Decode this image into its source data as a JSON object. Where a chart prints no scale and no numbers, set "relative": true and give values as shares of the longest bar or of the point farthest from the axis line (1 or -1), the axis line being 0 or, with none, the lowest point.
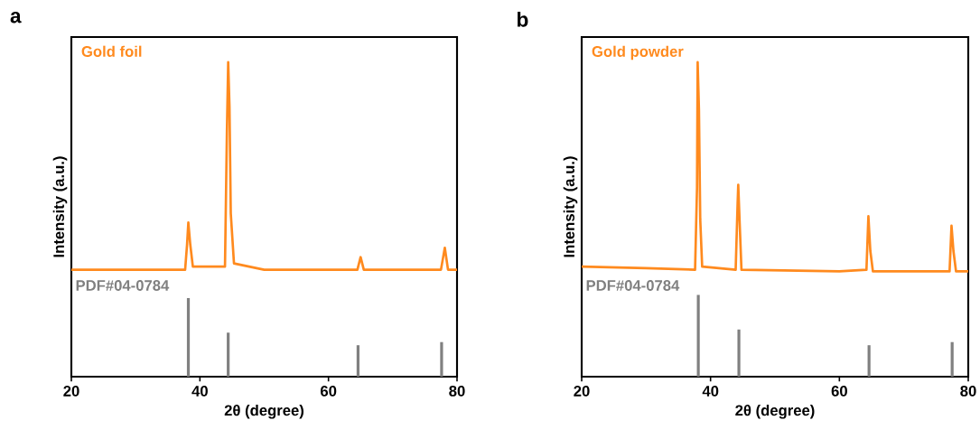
{
  "chart_data": [
    {
      "type": "line",
      "title": "a",
      "xlabel": "2θ (degree)",
      "ylabel": "Intensity (a.u.)",
      "relative": true,
      "xlim": [
        20,
        80
      ],
      "xticks": [
        20,
        40,
        60,
        80
      ],
      "series": [
        {
          "name": "Gold foil",
          "color": "#ff8a1e",
          "x": [
            20,
            30,
            37.7,
            38.0,
            38.2,
            38.5,
            38.9,
            43.9,
            44.2,
            44.4,
            44.6,
            44.8,
            45.3,
            50,
            64.5,
            65.0,
            65.5,
            77.5,
            78.1,
            78.6,
            80
          ],
          "values": [
            0.34,
            0.34,
            0.34,
            0.42,
            0.49,
            0.42,
            0.35,
            0.35,
            0.78,
            1.0,
            0.86,
            0.52,
            0.36,
            0.34,
            0.34,
            0.38,
            0.34,
            0.34,
            0.41,
            0.34,
            0.34
          ]
        },
        {
          "name": "PDF#04-0784",
          "type": "bar",
          "color": "#808080",
          "x": [
            38.2,
            44.4,
            64.6,
            77.6
          ],
          "values": [
            0.25,
            0.14,
            0.1,
            0.11
          ]
        }
      ]
    },
    {
      "type": "line",
      "title": "b",
      "xlabel": "2θ (degree)",
      "ylabel": "Intensity (a.u.)",
      "relative": true,
      "xlim": [
        20,
        80
      ],
      "xticks": [
        20,
        40,
        60,
        80
      ],
      "series": [
        {
          "name": "Gold powder",
          "color": "#ff8a1e",
          "x": [
            20,
            30,
            37.6,
            37.9,
            38.0,
            38.2,
            38.4,
            38.7,
            43.9,
            44.2,
            44.3,
            44.5,
            44.8,
            60,
            64.2,
            64.5,
            64.8,
            65.2,
            77.1,
            77.4,
            77.7,
            78.1,
            80
          ],
          "values": [
            0.35,
            0.345,
            0.34,
            0.6,
            1.0,
            0.85,
            0.5,
            0.35,
            0.34,
            0.55,
            0.61,
            0.5,
            0.34,
            0.335,
            0.34,
            0.51,
            0.4,
            0.335,
            0.335,
            0.48,
            0.4,
            0.335,
            0.335
          ]
        },
        {
          "name": "PDF#04-0784",
          "type": "bar",
          "color": "#808080",
          "x": [
            38.1,
            44.4,
            64.6,
            77.5
          ],
          "values": [
            0.26,
            0.15,
            0.1,
            0.11
          ]
        }
      ]
    }
  ]
}
